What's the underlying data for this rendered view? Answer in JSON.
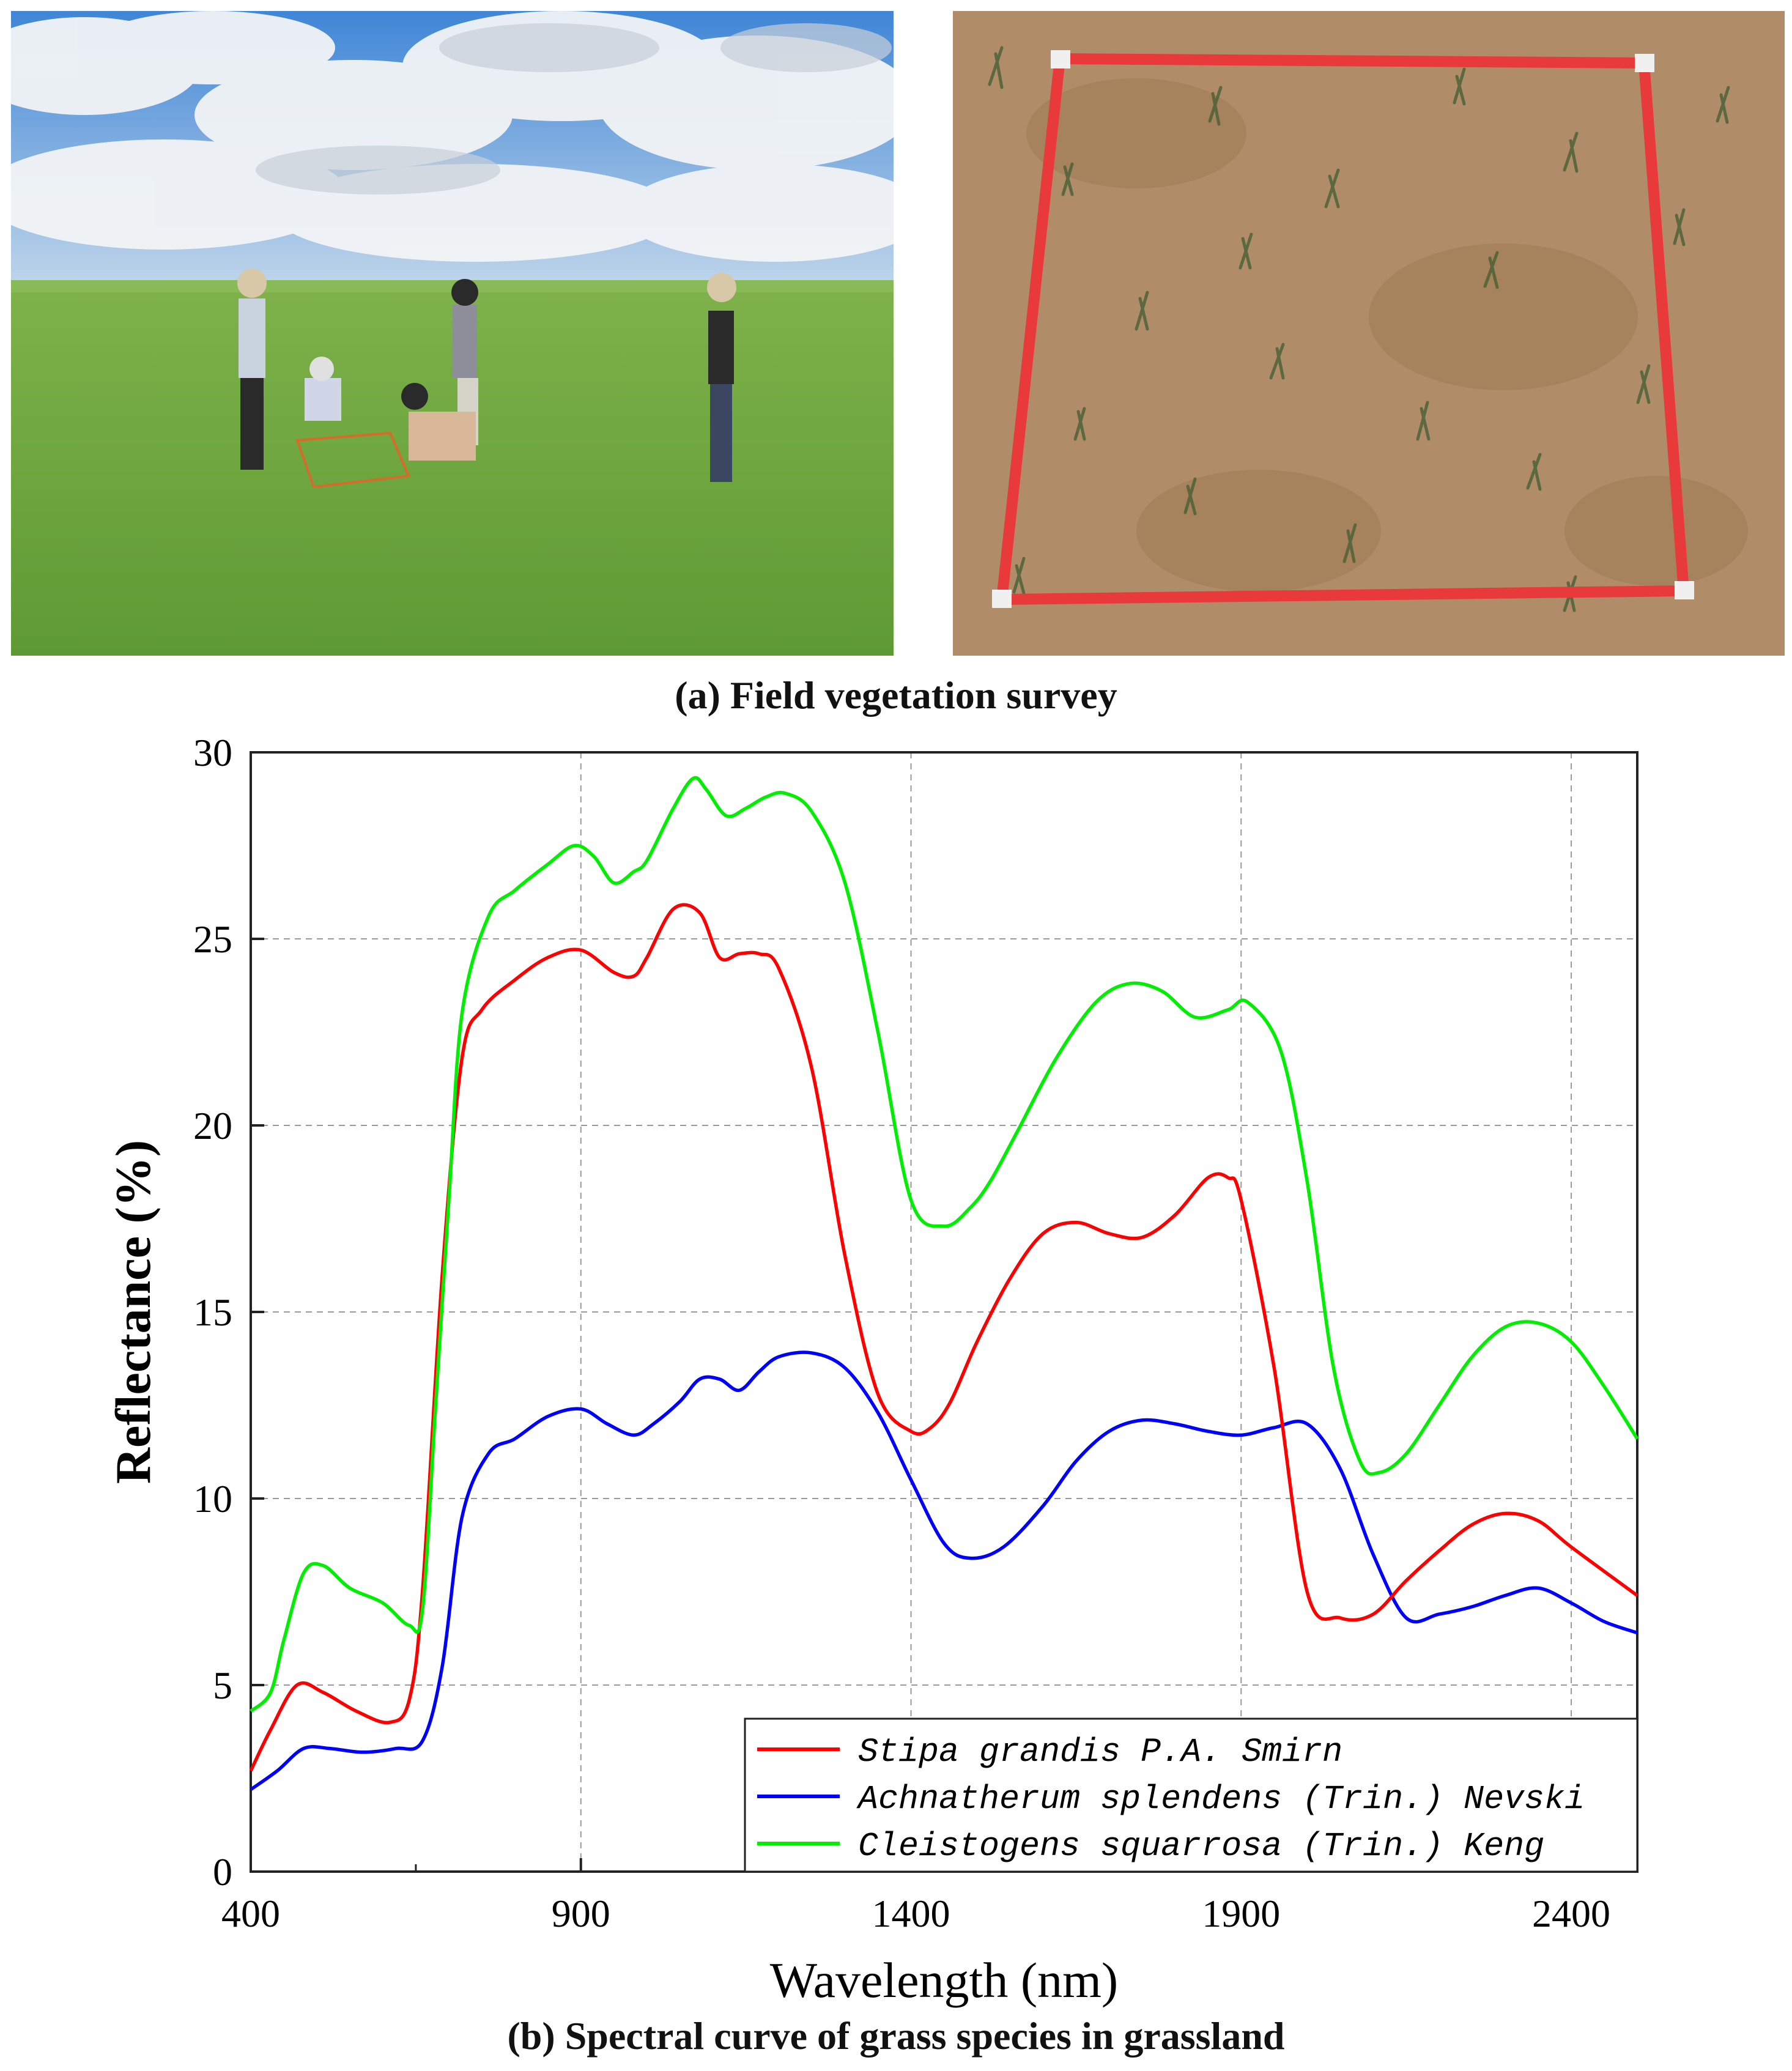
{
  "panel_a": {
    "caption": "(a) Field vegetation survey",
    "photo_left": "field-survey-photo",
    "photo_right": "quadrat-photo"
  },
  "panel_b": {
    "caption": "(b) Spectral curve of grass species in grassland"
  },
  "colors": {
    "stipa": "#ff0000",
    "achnatherum": "#0000ff",
    "cleistogenes": "#00ee00",
    "grid": "#9a9a9a"
  },
  "chart_data": {
    "type": "line",
    "title": "",
    "xlabel": "Wavelength (nm)",
    "ylabel": "Reflectance (%)",
    "xlim": [
      400,
      2500
    ],
    "ylim": [
      0,
      30
    ],
    "xticks": [
      400,
      900,
      1400,
      1900,
      2400
    ],
    "yticks": [
      0,
      5,
      10,
      15,
      20,
      25,
      30
    ],
    "grid": true,
    "legend_position": "bottom-right",
    "series": [
      {
        "name": "Stipa grandis P.A. Smirn",
        "color": "#ff0000",
        "x": [
          400,
          430,
          470,
          510,
          560,
          610,
          640,
          660,
          690,
          720,
          750,
          800,
          850,
          900,
          950,
          980,
          1000,
          1040,
          1080,
          1110,
          1140,
          1170,
          1200,
          1250,
          1300,
          1350,
          1400,
          1430,
          1460,
          1500,
          1550,
          1600,
          1650,
          1700,
          1750,
          1800,
          1850,
          1880,
          1900,
          1950,
          2000,
          2050,
          2100,
          2150,
          2200,
          2250,
          2300,
          2350,
          2400,
          2500
        ],
        "y": [
          2.7,
          3.8,
          5.0,
          4.8,
          4.3,
          4.0,
          4.6,
          7.5,
          16.0,
          21.8,
          23.1,
          23.9,
          24.5,
          24.7,
          24.1,
          24.0,
          24.5,
          25.8,
          25.7,
          24.5,
          24.6,
          24.6,
          24.2,
          21.5,
          16.5,
          12.8,
          11.8,
          11.9,
          12.6,
          14.2,
          15.9,
          17.1,
          17.4,
          17.1,
          17.0,
          17.6,
          18.6,
          18.6,
          18.0,
          13.5,
          7.5,
          6.8,
          6.9,
          7.8,
          8.6,
          9.3,
          9.6,
          9.4,
          8.7,
          7.4
        ]
      },
      {
        "name": "Achnatherum splendens (Trin.) Nevski",
        "color": "#0000ff",
        "x": [
          400,
          440,
          480,
          520,
          570,
          620,
          660,
          690,
          720,
          760,
          800,
          850,
          900,
          940,
          980,
          1010,
          1050,
          1080,
          1110,
          1140,
          1170,
          1200,
          1250,
          1300,
          1350,
          1400,
          1450,
          1490,
          1540,
          1600,
          1650,
          1700,
          1750,
          1800,
          1850,
          1900,
          1950,
          2000,
          2050,
          2100,
          2150,
          2200,
          2250,
          2300,
          2350,
          2400,
          2450,
          2500
        ],
        "y": [
          2.2,
          2.7,
          3.3,
          3.3,
          3.2,
          3.3,
          3.5,
          5.5,
          9.5,
          11.2,
          11.6,
          12.2,
          12.4,
          12.0,
          11.7,
          12.0,
          12.6,
          13.2,
          13.2,
          12.9,
          13.4,
          13.8,
          13.9,
          13.5,
          12.3,
          10.5,
          8.8,
          8.4,
          8.7,
          9.8,
          11.0,
          11.8,
          12.1,
          12.0,
          11.8,
          11.7,
          11.9,
          12.0,
          10.8,
          8.5,
          6.8,
          6.9,
          7.1,
          7.4,
          7.6,
          7.2,
          6.7,
          6.4
        ]
      },
      {
        "name": "Cleistogens squarrosa (Trin.) Keng",
        "color": "#00ee00",
        "x": [
          400,
          430,
          450,
          480,
          510,
          550,
          600,
          640,
          660,
          680,
          700,
          720,
          760,
          800,
          850,
          890,
          920,
          950,
          980,
          1000,
          1040,
          1070,
          1090,
          1120,
          1150,
          1180,
          1210,
          1250,
          1300,
          1350,
          1400,
          1450,
          1490,
          1520,
          1560,
          1620,
          1680,
          1730,
          1780,
          1830,
          1880,
          1910,
          1960,
          2000,
          2040,
          2080,
          2110,
          2150,
          2200,
          2250,
          2300,
          2350,
          2400,
          2450,
          2500
        ],
        "y": [
          4.3,
          4.8,
          6.2,
          8.0,
          8.2,
          7.6,
          7.2,
          6.6,
          7.0,
          12.5,
          18.0,
          23.0,
          25.6,
          26.3,
          27.0,
          27.5,
          27.2,
          26.5,
          26.8,
          27.1,
          28.5,
          29.3,
          29.0,
          28.3,
          28.5,
          28.8,
          28.9,
          28.4,
          26.5,
          22.5,
          18.0,
          17.3,
          17.8,
          18.5,
          19.8,
          21.8,
          23.3,
          23.8,
          23.6,
          22.9,
          23.1,
          23.3,
          22.0,
          18.5,
          13.5,
          11.0,
          10.7,
          11.2,
          12.5,
          13.8,
          14.6,
          14.7,
          14.2,
          13.0,
          11.6
        ]
      }
    ]
  }
}
